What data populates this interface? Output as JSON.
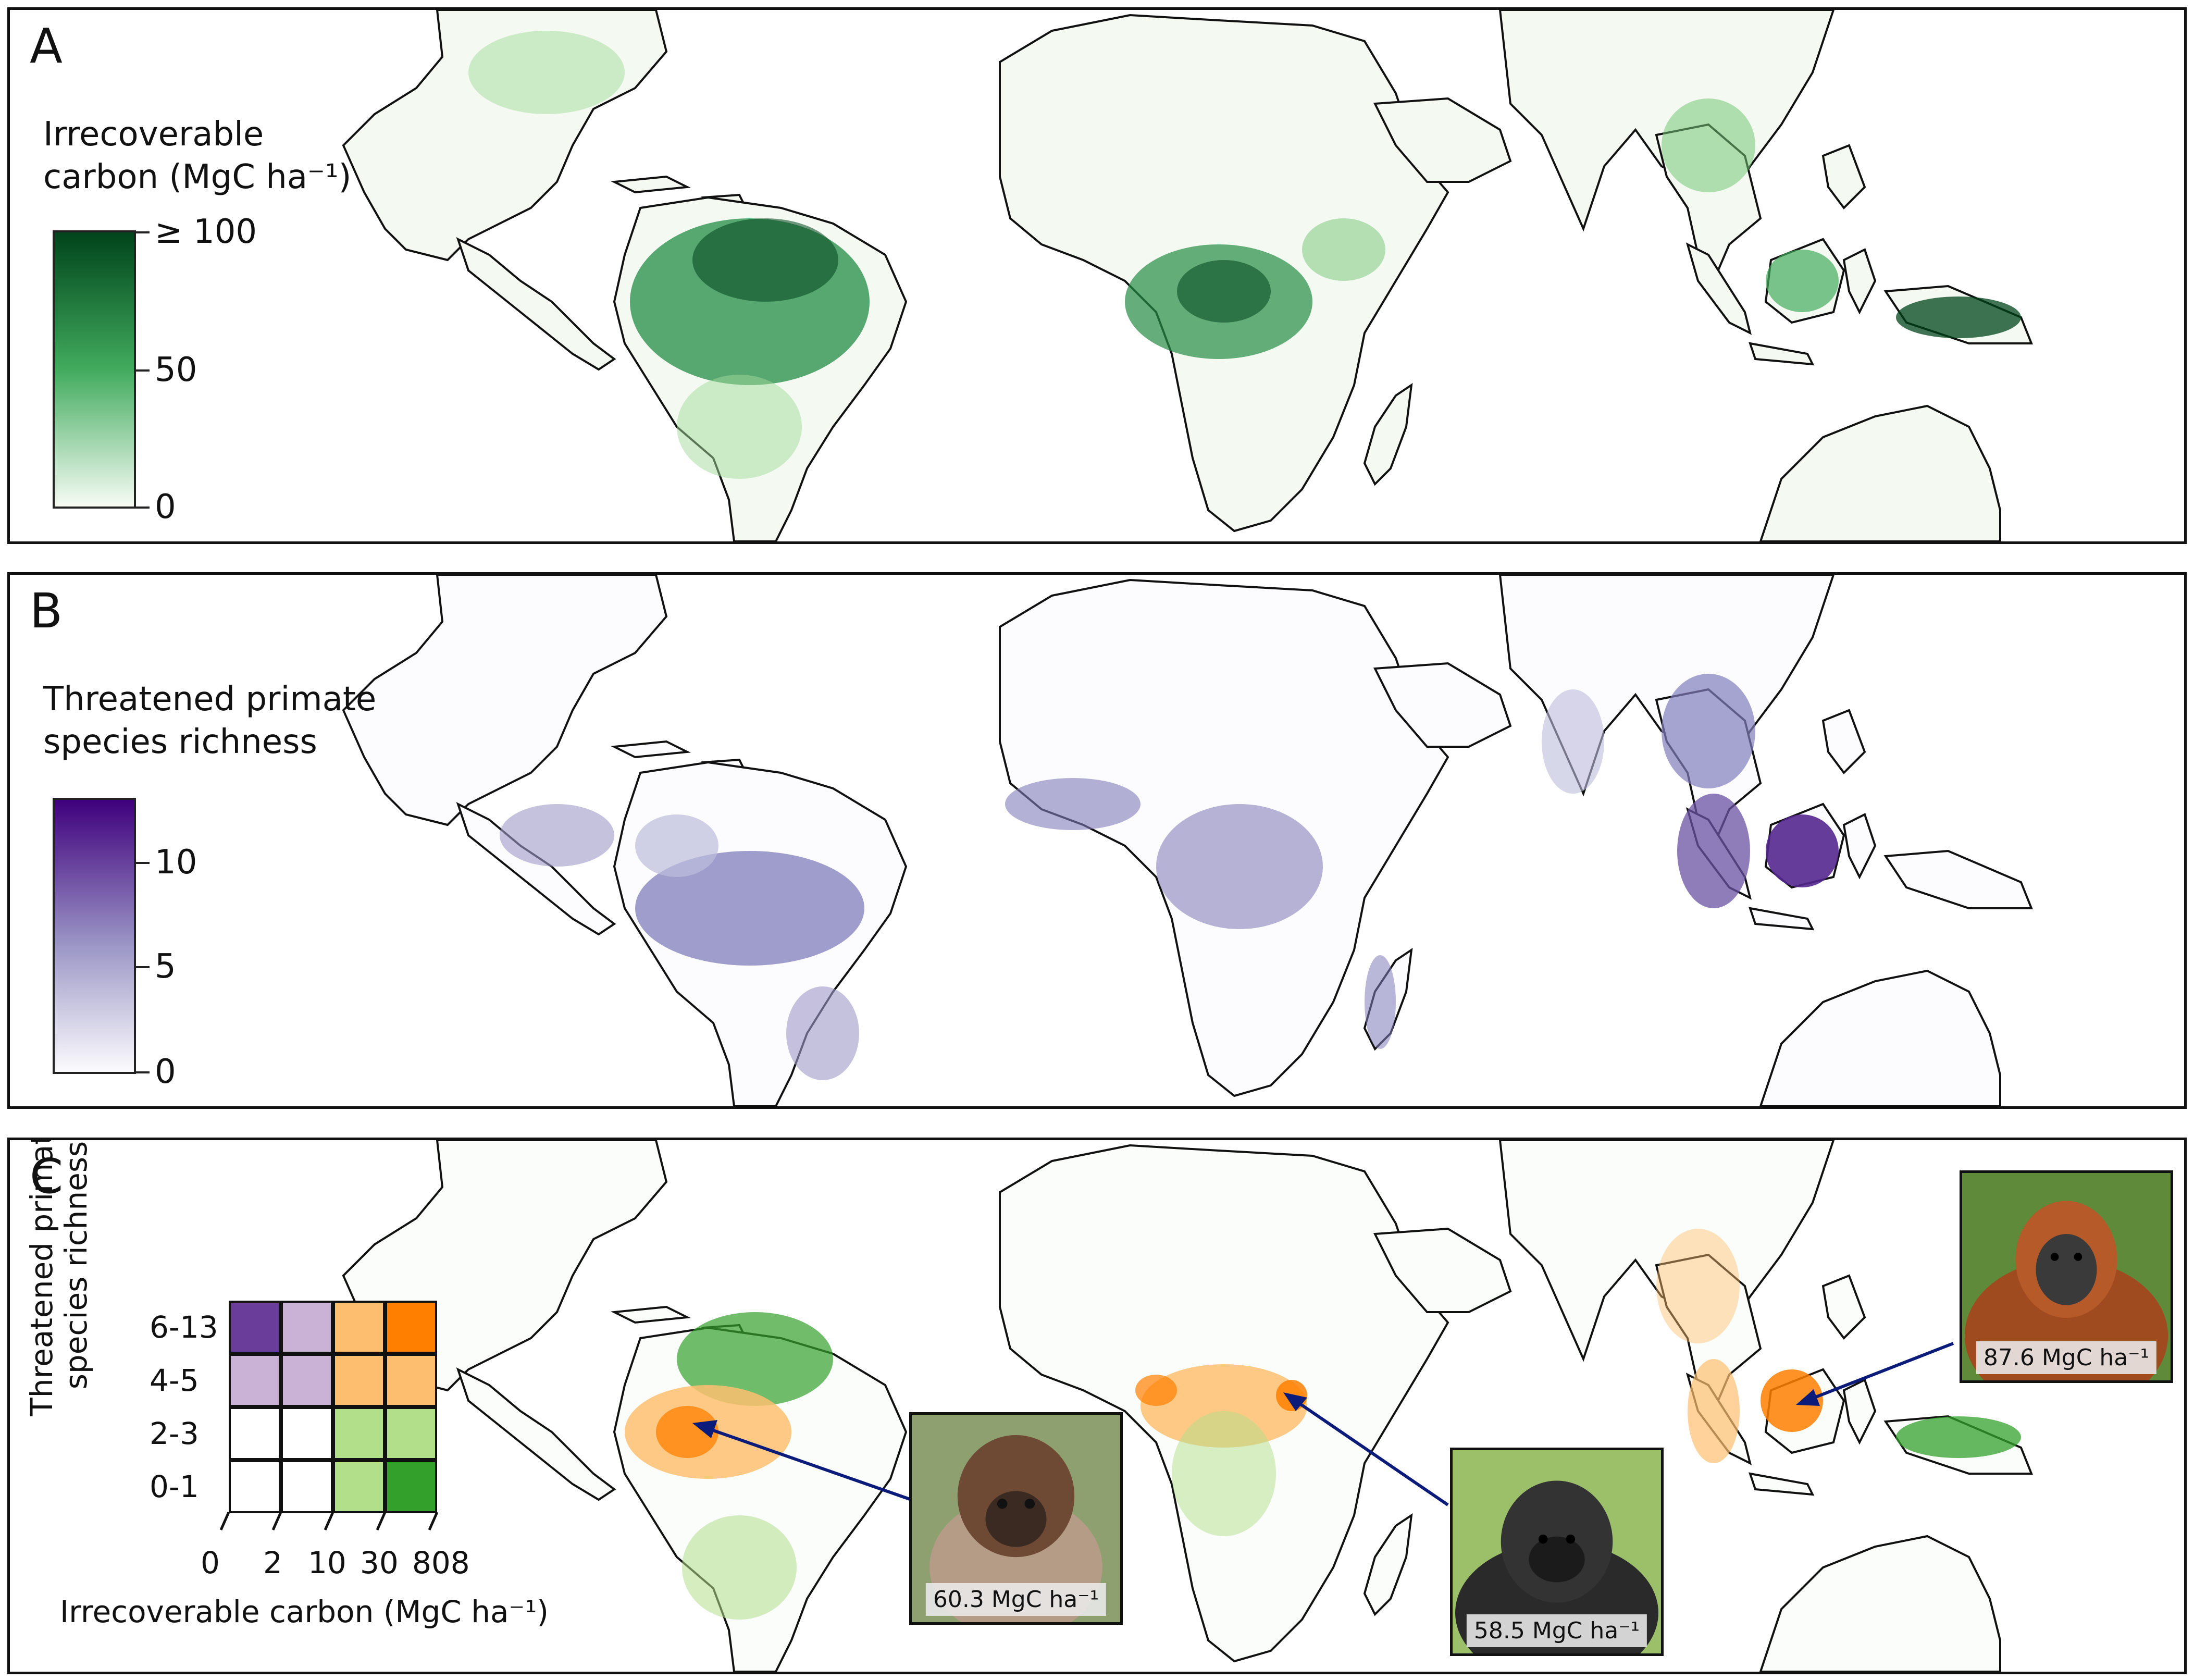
{
  "panel_a": {
    "letter": "A",
    "legend_title_line1": "Irrecoverable",
    "legend_title_line2": "carbon (MgC ha⁻¹)",
    "ticks": [
      "≥ 100",
      "50",
      "0"
    ],
    "colors": {
      "high": "#00441b",
      "mid": "#41ab5d",
      "low": "#f7fcf5"
    }
  },
  "panel_b": {
    "letter": "B",
    "legend_title_line1": "Threatened primate",
    "legend_title_line2": "species richness",
    "ticks": [
      "10",
      "5",
      "0"
    ],
    "colors": {
      "high": "#3f007d",
      "mid": "#807dba",
      "low": "#fcfbfd"
    }
  },
  "panel_c": {
    "letter": "C",
    "y_axis_label": "Threatened primate species richness",
    "y_ticks": [
      "6-13",
      "4-5",
      "2-3",
      "0-1"
    ],
    "x_axis_label": "Irrecoverable carbon (MgC ha⁻¹)",
    "x_ticks": [
      "0",
      "2",
      "10",
      "30",
      "808"
    ],
    "grid_colors": [
      [
        "#6a3d9a",
        "#cab2d6",
        "#fdbf6f",
        "#ff7f00"
      ],
      [
        "#cab2d6",
        "#cab2d6",
        "#fdbf6f",
        "#fdbf6f"
      ],
      [
        "#ffffff",
        "#ffffff",
        "#b2df8a",
        "#b2df8a"
      ],
      [
        "#ffffff",
        "#ffffff",
        "#b2df8a",
        "#33a02c"
      ]
    ],
    "photos": [
      {
        "caption": "60.3 MgC ha⁻¹",
        "animal": "woolly-monkey"
      },
      {
        "caption": "58.5 MgC ha⁻¹",
        "animal": "gorilla"
      },
      {
        "caption": "87.6 MgC ha⁻¹",
        "animal": "orangutan"
      }
    ],
    "arrow_color": "#0b1b7a"
  }
}
